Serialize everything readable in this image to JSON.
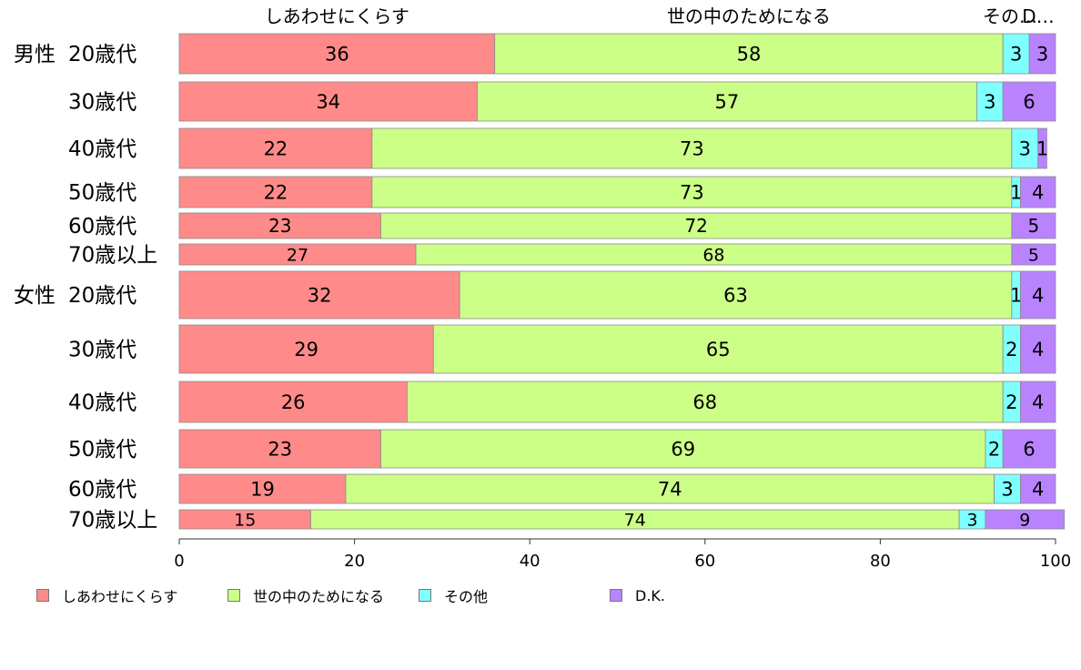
{
  "chart_data": {
    "type": "bar",
    "orientation": "horizontal",
    "stacked": true,
    "xlim": [
      0,
      100
    ],
    "x_ticks": [
      "0",
      "20",
      "40",
      "60",
      "80",
      "100"
    ],
    "top_labels": [
      "しあわせにくらす",
      "世の中のためになる",
      "その…",
      "D…"
    ],
    "series": [
      {
        "name": "しあわせにくらす",
        "color": "#ff8a8a"
      },
      {
        "name": "世の中のためになる",
        "color": "#ccff88"
      },
      {
        "name": "その他",
        "color": "#80ffff"
      },
      {
        "name": "D.K.",
        "color": "#b983ff"
      }
    ],
    "categories": [
      {
        "group": "男性",
        "label": "20歳代",
        "values": [
          36,
          58,
          3,
          3
        ]
      },
      {
        "group": "",
        "label": "30歳代",
        "values": [
          34,
          57,
          3,
          6
        ]
      },
      {
        "group": "",
        "label": "40歳代",
        "values": [
          22,
          73,
          3,
          1
        ]
      },
      {
        "group": "",
        "label": "50歳代",
        "values": [
          22,
          73,
          1,
          4
        ]
      },
      {
        "group": "",
        "label": "60歳代",
        "values": [
          23,
          72,
          0,
          5
        ]
      },
      {
        "group": "",
        "label": "70歳以上",
        "values": [
          27,
          68,
          0,
          5
        ]
      },
      {
        "group": "女性",
        "label": "20歳代",
        "values": [
          32,
          63,
          1,
          4
        ]
      },
      {
        "group": "",
        "label": "30歳代",
        "values": [
          29,
          65,
          2,
          4
        ]
      },
      {
        "group": "",
        "label": "40歳代",
        "values": [
          26,
          68,
          2,
          4
        ]
      },
      {
        "group": "",
        "label": "50歳代",
        "values": [
          23,
          69,
          2,
          6
        ]
      },
      {
        "group": "",
        "label": "60歳代",
        "values": [
          19,
          74,
          3,
          4
        ]
      },
      {
        "group": "",
        "label": "70歳以上",
        "values": [
          15,
          74,
          3,
          9
        ]
      }
    ]
  },
  "legend": {
    "items": [
      {
        "label": "しあわせにくらす",
        "color": "#ff8a8a"
      },
      {
        "label": "世の中のためになる",
        "color": "#ccff88"
      },
      {
        "label": "その他",
        "color": "#80ffff"
      },
      {
        "label": "D.K.",
        "color": "#b983ff"
      }
    ]
  }
}
